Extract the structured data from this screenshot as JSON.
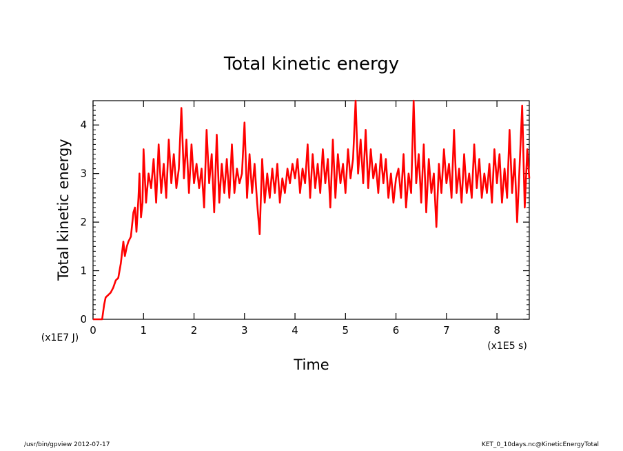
{
  "chart_data": {
    "type": "line",
    "title": "Total kinetic energy",
    "xlabel": "Time",
    "ylabel": "Total kinetic energy",
    "x_unit": "(x1E5 s)",
    "y_unit": "(x1E7 J)",
    "xlim": [
      0,
      8.64
    ],
    "ylim": [
      0,
      4.5
    ],
    "xticks": [
      0,
      1,
      2,
      3,
      4,
      5,
      6,
      7,
      8
    ],
    "yticks": [
      0,
      1,
      2,
      3,
      4
    ],
    "grid": false,
    "line_color": "#ff0000",
    "series": [
      {
        "points": [
          [
            0.0,
            0.0
          ],
          [
            0.1,
            0.0
          ],
          [
            0.18,
            0.0
          ],
          [
            0.22,
            0.3
          ],
          [
            0.25,
            0.45
          ],
          [
            0.3,
            0.5
          ],
          [
            0.35,
            0.55
          ],
          [
            0.4,
            0.65
          ],
          [
            0.45,
            0.8
          ],
          [
            0.5,
            0.85
          ],
          [
            0.55,
            1.15
          ],
          [
            0.6,
            1.6
          ],
          [
            0.63,
            1.3
          ],
          [
            0.67,
            1.5
          ],
          [
            0.7,
            1.6
          ],
          [
            0.75,
            1.7
          ],
          [
            0.78,
            2.0
          ],
          [
            0.8,
            2.2
          ],
          [
            0.83,
            2.3
          ],
          [
            0.86,
            1.8
          ],
          [
            0.9,
            2.5
          ],
          [
            0.92,
            3.0
          ],
          [
            0.95,
            2.1
          ],
          [
            0.98,
            2.4
          ],
          [
            1.0,
            3.5
          ],
          [
            1.05,
            2.4
          ],
          [
            1.1,
            3.0
          ],
          [
            1.15,
            2.7
          ],
          [
            1.2,
            3.3
          ],
          [
            1.25,
            2.4
          ],
          [
            1.3,
            3.6
          ],
          [
            1.35,
            2.6
          ],
          [
            1.4,
            3.2
          ],
          [
            1.45,
            2.5
          ],
          [
            1.5,
            3.7
          ],
          [
            1.55,
            2.8
          ],
          [
            1.6,
            3.4
          ],
          [
            1.65,
            2.7
          ],
          [
            1.7,
            3.1
          ],
          [
            1.75,
            4.35
          ],
          [
            1.8,
            2.9
          ],
          [
            1.85,
            3.7
          ],
          [
            1.9,
            2.6
          ],
          [
            1.95,
            3.6
          ],
          [
            2.0,
            2.8
          ],
          [
            2.05,
            3.2
          ],
          [
            2.1,
            2.7
          ],
          [
            2.15,
            3.1
          ],
          [
            2.2,
            2.3
          ],
          [
            2.25,
            3.9
          ],
          [
            2.3,
            2.8
          ],
          [
            2.35,
            3.4
          ],
          [
            2.4,
            2.2
          ],
          [
            2.45,
            3.8
          ],
          [
            2.5,
            2.4
          ],
          [
            2.55,
            3.2
          ],
          [
            2.6,
            2.6
          ],
          [
            2.65,
            3.3
          ],
          [
            2.7,
            2.5
          ],
          [
            2.75,
            3.6
          ],
          [
            2.8,
            2.6
          ],
          [
            2.85,
            3.1
          ],
          [
            2.9,
            2.8
          ],
          [
            2.95,
            3.0
          ],
          [
            3.0,
            4.05
          ],
          [
            3.05,
            2.5
          ],
          [
            3.1,
            3.4
          ],
          [
            3.15,
            2.6
          ],
          [
            3.2,
            3.2
          ],
          [
            3.25,
            2.4
          ],
          [
            3.3,
            1.75
          ],
          [
            3.35,
            3.3
          ],
          [
            3.4,
            2.4
          ],
          [
            3.45,
            3.0
          ],
          [
            3.5,
            2.5
          ],
          [
            3.55,
            3.1
          ],
          [
            3.6,
            2.6
          ],
          [
            3.65,
            3.2
          ],
          [
            3.7,
            2.4
          ],
          [
            3.75,
            2.9
          ],
          [
            3.8,
            2.6
          ],
          [
            3.85,
            3.1
          ],
          [
            3.9,
            2.8
          ],
          [
            3.95,
            3.2
          ],
          [
            4.0,
            2.9
          ],
          [
            4.05,
            3.3
          ],
          [
            4.1,
            2.6
          ],
          [
            4.15,
            3.1
          ],
          [
            4.2,
            2.8
          ],
          [
            4.25,
            3.6
          ],
          [
            4.3,
            2.5
          ],
          [
            4.35,
            3.4
          ],
          [
            4.4,
            2.7
          ],
          [
            4.45,
            3.2
          ],
          [
            4.5,
            2.6
          ],
          [
            4.55,
            3.5
          ],
          [
            4.6,
            2.8
          ],
          [
            4.65,
            3.3
          ],
          [
            4.7,
            2.3
          ],
          [
            4.75,
            3.7
          ],
          [
            4.8,
            2.5
          ],
          [
            4.85,
            3.4
          ],
          [
            4.9,
            2.8
          ],
          [
            4.95,
            3.2
          ],
          [
            5.0,
            2.6
          ],
          [
            5.05,
            3.5
          ],
          [
            5.1,
            2.9
          ],
          [
            5.15,
            3.3
          ],
          [
            5.2,
            4.5
          ],
          [
            5.25,
            3.0
          ],
          [
            5.3,
            3.7
          ],
          [
            5.35,
            2.8
          ],
          [
            5.4,
            3.9
          ],
          [
            5.45,
            2.7
          ],
          [
            5.5,
            3.5
          ],
          [
            5.55,
            2.9
          ],
          [
            5.6,
            3.2
          ],
          [
            5.65,
            2.6
          ],
          [
            5.7,
            3.4
          ],
          [
            5.75,
            2.8
          ],
          [
            5.8,
            3.3
          ],
          [
            5.85,
            2.5
          ],
          [
            5.9,
            3.0
          ],
          [
            5.95,
            2.4
          ],
          [
            6.0,
            2.9
          ],
          [
            6.05,
            3.1
          ],
          [
            6.1,
            2.5
          ],
          [
            6.15,
            3.4
          ],
          [
            6.2,
            2.3
          ],
          [
            6.25,
            3.0
          ],
          [
            6.3,
            2.6
          ],
          [
            6.35,
            4.5
          ],
          [
            6.4,
            2.8
          ],
          [
            6.45,
            3.4
          ],
          [
            6.5,
            2.4
          ],
          [
            6.55,
            3.6
          ],
          [
            6.6,
            2.2
          ],
          [
            6.65,
            3.3
          ],
          [
            6.7,
            2.6
          ],
          [
            6.75,
            3.0
          ],
          [
            6.8,
            1.9
          ],
          [
            6.85,
            3.2
          ],
          [
            6.9,
            2.6
          ],
          [
            6.95,
            3.5
          ],
          [
            7.0,
            2.8
          ],
          [
            7.05,
            3.2
          ],
          [
            7.1,
            2.5
          ],
          [
            7.15,
            3.9
          ],
          [
            7.2,
            2.6
          ],
          [
            7.25,
            3.1
          ],
          [
            7.3,
            2.4
          ],
          [
            7.35,
            3.4
          ],
          [
            7.4,
            2.6
          ],
          [
            7.45,
            3.0
          ],
          [
            7.5,
            2.5
          ],
          [
            7.55,
            3.6
          ],
          [
            7.6,
            2.7
          ],
          [
            7.65,
            3.3
          ],
          [
            7.7,
            2.5
          ],
          [
            7.75,
            3.0
          ],
          [
            7.8,
            2.6
          ],
          [
            7.85,
            3.2
          ],
          [
            7.9,
            2.4
          ],
          [
            7.95,
            3.5
          ],
          [
            8.0,
            2.8
          ],
          [
            8.05,
            3.4
          ],
          [
            8.1,
            2.4
          ],
          [
            8.15,
            3.1
          ],
          [
            8.2,
            2.5
          ],
          [
            8.25,
            3.9
          ],
          [
            8.3,
            2.6
          ],
          [
            8.35,
            3.3
          ],
          [
            8.4,
            2.0
          ],
          [
            8.45,
            3.2
          ],
          [
            8.5,
            4.4
          ],
          [
            8.55,
            2.3
          ],
          [
            8.6,
            3.5
          ],
          [
            8.64,
            2.9
          ]
        ]
      }
    ]
  },
  "footer": {
    "left": "/usr/bin/gpview   2012-07-17",
    "right": "KET_0_10days.nc@KineticEnergyTotal"
  }
}
